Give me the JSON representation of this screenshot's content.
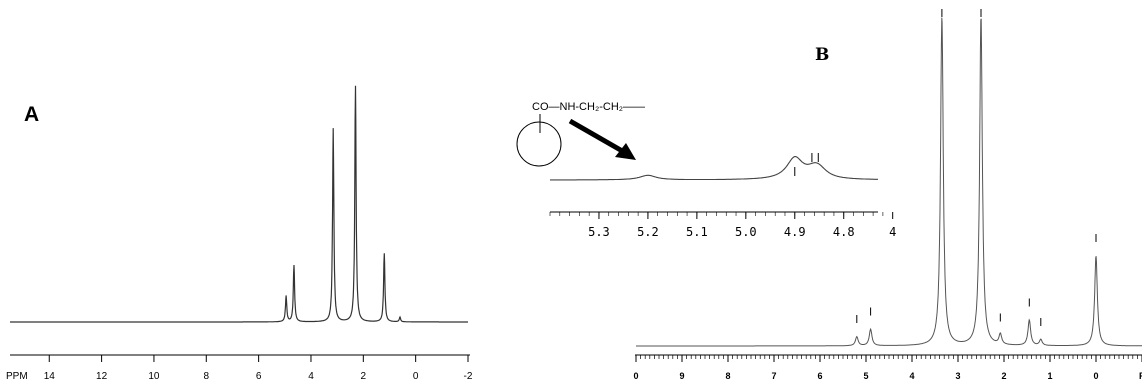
{
  "chart_data": [
    {
      "type": "line",
      "panel_label": "A",
      "xlabel": "PPM",
      "xlim": [
        15.5,
        -2
      ],
      "x_ticks": [
        14,
        12,
        10,
        8,
        6,
        4,
        2,
        0,
        -2
      ],
      "peaks": [
        {
          "ppm": 4.95,
          "height": 0.11
        },
        {
          "ppm": 4.65,
          "height": 0.24
        },
        {
          "ppm": 3.15,
          "height": 0.82
        },
        {
          "ppm": 2.3,
          "height": 1.0
        },
        {
          "ppm": 1.2,
          "height": 0.29
        },
        {
          "ppm": 0.6,
          "height": 0.02
        }
      ]
    },
    {
      "type": "line",
      "panel_label": "B",
      "xlim": [
        10,
        -1
      ],
      "x_ticks": [
        "0",
        "9",
        "8",
        "7",
        "6",
        "5",
        "4",
        "3",
        "2",
        "1",
        "0",
        "P"
      ],
      "peaks": [
        {
          "ppm": 5.2,
          "height": 0.03
        },
        {
          "ppm": 4.9,
          "height": 0.055
        },
        {
          "ppm": 3.35,
          "height": 1.1
        },
        {
          "ppm": 2.5,
          "height": 1.1
        },
        {
          "ppm": 2.08,
          "height": 0.035
        },
        {
          "ppm": 1.45,
          "height": 0.085
        },
        {
          "ppm": 1.2,
          "height": 0.02
        },
        {
          "ppm": 0.0,
          "height": 0.3
        }
      ],
      "inset": {
        "xlim": [
          5.4,
          4.73
        ],
        "x_ticks": [
          "5.3",
          "5.2",
          "5.1",
          "5.0",
          "4.9",
          "4.8",
          "4"
        ],
        "peaks": [
          {
            "ppm": 5.2,
            "height": 0.12
          },
          {
            "ppm": 4.9,
            "height": 0.55
          },
          {
            "ppm": 4.86,
            "height": 0.2
          },
          {
            "ppm": 4.85,
            "height": 0.18
          }
        ],
        "structure_label": "CO—NH-CH₂-CH₂——",
        "structure_group": "CO"
      }
    }
  ]
}
